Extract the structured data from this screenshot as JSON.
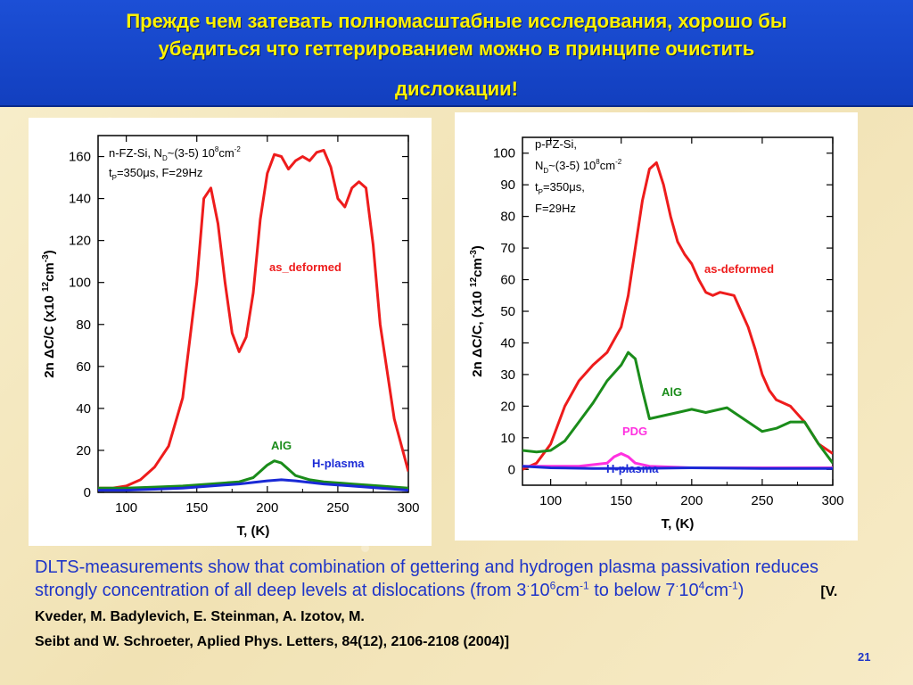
{
  "header": {
    "line1": "Прежде чем затевать полномасштабные  исследования, хорошо бы",
    "line2": "убедиться что геттерированием можно в принципе очистить",
    "line3": "дислокации!"
  },
  "caption": {
    "text1": "DLTS-measurements show that combination of gettering and hydrogen plasma passivation reduces strongly concentration of all deep levels at dislocations (from 3",
    "dot1": "·",
    "ten1": "10",
    "exp1": "6",
    "unit1": "cm",
    "unitexp1": "-1",
    "text2": " to below 7",
    "dot2": "·",
    "ten2": "10",
    "exp2": "4",
    "unit2": "cm",
    "unitexp2": "-1",
    "close": ")",
    "ref_a": "[V. Kveder, M. Badylevich, E. Steinman, A. Izotov, M.",
    "ref_b": "Seibt and W. Schroeter, Aplied Phys. Letters, 84(12), 2106-2108 (2004)]"
  },
  "page_number": "21",
  "colors": {
    "red": "#ee1c1c",
    "green": "#1a8c1a",
    "blue": "#1a2ad6",
    "magenta": "#ff30e0"
  },
  "chart_data": [
    {
      "type": "line",
      "xlabel": "T, (K)",
      "ylabel_parts": [
        "2n ",
        "Δ",
        "C/C  (x10 ",
        "12",
        "cm",
        "-3",
        ")"
      ],
      "xlim": [
        80,
        300
      ],
      "ylim": [
        0,
        170
      ],
      "xticks": [
        100,
        150,
        200,
        250,
        300
      ],
      "yticks": [
        0,
        20,
        40,
        60,
        80,
        100,
        120,
        140,
        160
      ],
      "info_lines": [
        [
          "n-FZ-Si, N",
          "D",
          "~(3-5) 10",
          "8",
          "cm",
          "-2"
        ],
        [
          "t",
          "P",
          "=350",
          "μ",
          "s, F=29Hz"
        ]
      ],
      "series": [
        {
          "name": "as_deformed",
          "color": "#ee1c1c",
          "x": [
            80,
            90,
            100,
            110,
            120,
            130,
            140,
            150,
            155,
            160,
            165,
            170,
            175,
            180,
            185,
            190,
            195,
            200,
            205,
            210,
            215,
            220,
            225,
            230,
            235,
            240,
            245,
            250,
            255,
            260,
            265,
            270,
            275,
            280,
            290,
            300
          ],
          "values": [
            2,
            2,
            3,
            6,
            12,
            22,
            45,
            100,
            140,
            145,
            128,
            100,
            76,
            67,
            74,
            95,
            130,
            152,
            161,
            160,
            154,
            158,
            160,
            158,
            162,
            163,
            155,
            140,
            136,
            145,
            148,
            145,
            118,
            80,
            35,
            10
          ]
        },
        {
          "name": "AlG",
          "color": "#1a8c1a",
          "x": [
            80,
            100,
            120,
            140,
            160,
            180,
            190,
            195,
            200,
            205,
            210,
            215,
            220,
            230,
            240,
            260,
            280,
            300
          ],
          "values": [
            2,
            2,
            2.5,
            3,
            4,
            5,
            7,
            10,
            13,
            15,
            14,
            11,
            8,
            6,
            5,
            4,
            3,
            2
          ]
        },
        {
          "name": "H-plasma",
          "color": "#1a2ad6",
          "x": [
            80,
            100,
            120,
            140,
            160,
            180,
            200,
            210,
            220,
            240,
            260,
            280,
            300
          ],
          "values": [
            1,
            1,
            1.5,
            2,
            3,
            4,
            5.5,
            6,
            5.5,
            4,
            3,
            2,
            1
          ]
        }
      ],
      "labels": [
        "as_deformed",
        "AlG",
        "H-plasma"
      ]
    },
    {
      "type": "line",
      "xlabel": "T, (K)",
      "ylabel_parts": [
        "2n ",
        "Δ",
        "C/C,  (x10 ",
        "12",
        "cm",
        "-3",
        ")"
      ],
      "xlim": [
        80,
        300
      ],
      "ylim": [
        -5,
        105
      ],
      "xticks": [
        100,
        150,
        200,
        250,
        300
      ],
      "yticks": [
        0,
        10,
        20,
        30,
        40,
        50,
        60,
        70,
        80,
        90,
        100
      ],
      "info_lines": [
        [
          "p-FZ-Si,"
        ],
        [
          "N",
          "D",
          "~(3-5) 10",
          "8",
          "cm",
          "-2"
        ],
        [
          "t",
          "P",
          "=350",
          "μ",
          "s,"
        ],
        [
          "F=29Hz"
        ]
      ],
      "series": [
        {
          "name": "as-deformed",
          "color": "#ee1c1c",
          "x": [
            80,
            90,
            100,
            110,
            120,
            130,
            140,
            150,
            155,
            160,
            165,
            170,
            175,
            180,
            185,
            190,
            195,
            200,
            205,
            210,
            215,
            220,
            230,
            235,
            240,
            245,
            250,
            255,
            260,
            270,
            280,
            290,
            300
          ],
          "values": [
            0,
            2,
            8,
            20,
            28,
            33,
            37,
            45,
            55,
            70,
            85,
            95,
            97,
            90,
            80,
            72,
            68,
            65,
            60,
            56,
            55,
            56,
            55,
            50,
            45,
            38,
            30,
            25,
            22,
            20,
            15,
            8,
            5
          ]
        },
        {
          "name": "AlG",
          "color": "#1a8c1a",
          "x": [
            80,
            90,
            100,
            110,
            120,
            130,
            140,
            150,
            155,
            160,
            165,
            170,
            180,
            190,
            200,
            210,
            220,
            225,
            230,
            240,
            250,
            260,
            270,
            280,
            290,
            300
          ],
          "values": [
            6,
            5.5,
            6,
            9,
            15,
            21,
            28,
            33,
            37,
            35,
            25,
            16,
            17,
            18,
            19,
            18,
            19,
            19.5,
            18,
            15,
            12,
            13,
            15,
            15,
            8,
            2
          ]
        },
        {
          "name": "PDG",
          "color": "#ff30e0",
          "x": [
            80,
            100,
            120,
            130,
            140,
            145,
            150,
            155,
            160,
            170,
            200,
            250,
            300
          ],
          "values": [
            1,
            1,
            1,
            1.5,
            2,
            4,
            5,
            4,
            2,
            1,
            0.5,
            0.5,
            0.5
          ]
        },
        {
          "name": "H-plasma",
          "color": "#1a2ad6",
          "x": [
            80,
            100,
            130,
            160,
            200,
            250,
            300
          ],
          "values": [
            1,
            0.5,
            0.3,
            0.3,
            0.5,
            0.3,
            0.3
          ]
        }
      ],
      "labels": [
        "as-deformed",
        "AlG",
        "PDG",
        "H-plasma"
      ]
    }
  ]
}
